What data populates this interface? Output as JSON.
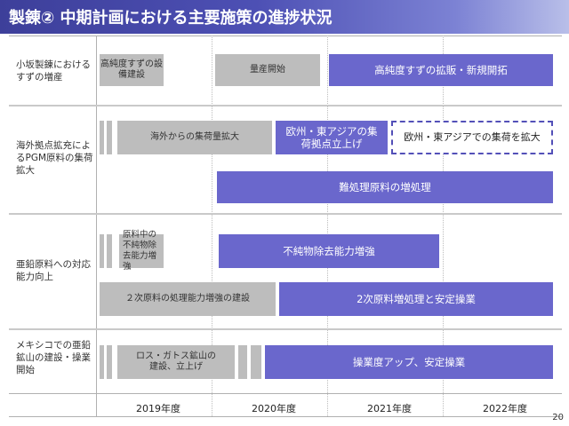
{
  "title": "製錬② 中期計画における主要施策の進捗状況",
  "rows": [
    {
      "label": "小坂製錬におけるすずの増産",
      "bars": [
        "高純度すずの設備建設",
        "量産開始",
        "高純度すずの拡販・新規開拓"
      ]
    },
    {
      "label": "海外拠点拡充によるPGM原料の集荷拡大",
      "bars": [
        "海外からの集荷量拡大",
        "欧州・東アジアの集荷拠点立上げ",
        "欧州・東アジアでの集荷を拡大",
        "難処理原料の増処理"
      ]
    },
    {
      "label": "亜鉛原料への対応能力向上",
      "bars": [
        "原料中の不純物除去能力増強",
        "不純物除去能力増強",
        "２次原料の処理能力増強の建設",
        "2次原料増処理と安定操業"
      ]
    },
    {
      "label": "メキシコでの亜鉛鉱山の建設・操業開始",
      "bars": [
        "ロス・ガトス鉱山の建設、立上げ",
        "操業度アップ、安定操業"
      ]
    }
  ],
  "years": [
    "2019年度",
    "2020年度",
    "2021年度",
    "2022年度"
  ],
  "page_number": "20",
  "colors": {
    "title_bg": "#4d50b4",
    "done_bar": "#bdbdbd",
    "plan_bar": "#6a67cc",
    "dashed_border": "#5350b8"
  }
}
